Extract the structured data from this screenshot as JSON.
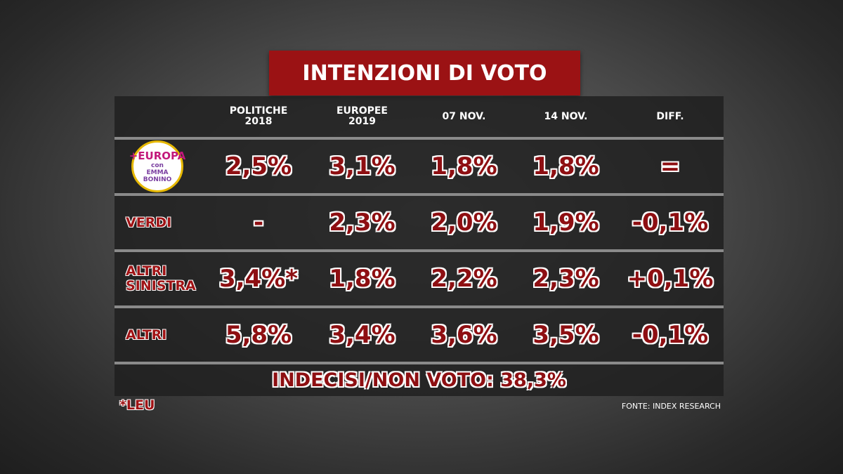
{
  "title": "INTENZIONI DI VOTO",
  "table": {
    "header": [
      "POLITICHE 2018",
      "EUROPEE 2019",
      "07 NOV.",
      "14 NOV.",
      "DIFF."
    ],
    "rows": [
      {
        "logo": [
          "+EUROPA",
          "con EMMA BONINO"
        ],
        "values": [
          "2,5%",
          "3,1%",
          "1,8%",
          "1,8%",
          "="
        ]
      },
      {
        "label": "VERDI",
        "values": [
          "-",
          "2,3%",
          "2,0%",
          "1,9%",
          "-0,1%"
        ]
      },
      {
        "label": "ALTRI SINISTRA",
        "values": [
          "3,4%*",
          "1,8%",
          "2,2%",
          "2,3%",
          "+0,1%"
        ]
      },
      {
        "label": "ALTRI",
        "values": [
          "5,8%",
          "3,4%",
          "3,6%",
          "3,5%",
          "-0,1%"
        ]
      }
    ],
    "footer": "INDECISI/NON VOTO: 38,3%"
  },
  "note": "*LEU",
  "source": "FONTE: INDEX RESEARCH"
}
